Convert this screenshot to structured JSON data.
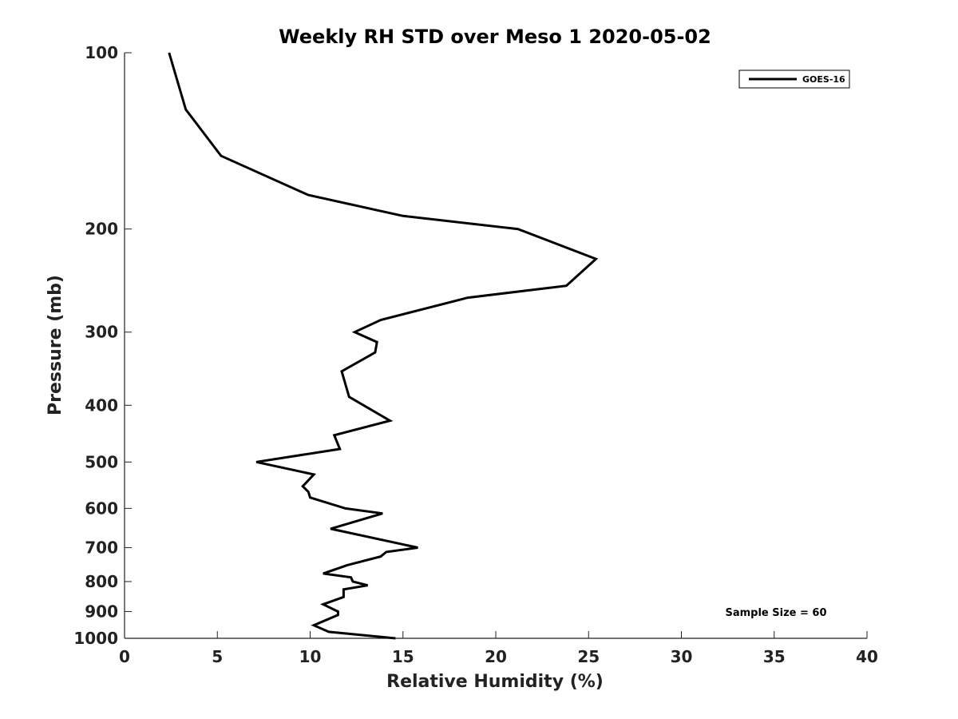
{
  "chart_data": {
    "type": "line",
    "title": "Weekly RH STD over Meso 1 2020-05-02",
    "xlabel": "Relative Humidity (%)",
    "ylabel": "Pressure (mb)",
    "xlim": [
      0,
      40
    ],
    "ylim": [
      100,
      1000
    ],
    "yscale": "log",
    "y_reversed": true,
    "x_ticks": [
      "0",
      "5",
      "10",
      "15",
      "20",
      "25",
      "30",
      "35",
      "40"
    ],
    "y_ticks": [
      "100",
      "200",
      "300",
      "400",
      "500",
      "600",
      "700",
      "800",
      "900",
      "1000"
    ],
    "grid": false,
    "legend_position": "top-right",
    "annotation": "Sample Size = 60",
    "series": [
      {
        "name": "GOES-16",
        "color": "#000000",
        "points": [
          [
            2.4,
            100
          ],
          [
            3.3,
            125
          ],
          [
            5.2,
            150
          ],
          [
            9.9,
            175
          ],
          [
            15.0,
            190
          ],
          [
            21.2,
            200
          ],
          [
            25.4,
            225
          ],
          [
            23.8,
            250
          ],
          [
            18.5,
            262
          ],
          [
            13.8,
            286
          ],
          [
            12.4,
            300
          ],
          [
            13.6,
            312
          ],
          [
            13.5,
            325
          ],
          [
            11.7,
            350
          ],
          [
            12.1,
            387
          ],
          [
            14.3,
            425
          ],
          [
            11.3,
            450
          ],
          [
            11.6,
            475
          ],
          [
            7.1,
            500
          ],
          [
            10.2,
            525
          ],
          [
            9.6,
            550
          ],
          [
            9.9,
            562
          ],
          [
            10.0,
            575
          ],
          [
            11.9,
            600
          ],
          [
            13.9,
            612
          ],
          [
            11.1,
            650
          ],
          [
            15.8,
            700
          ],
          [
            14.1,
            712
          ],
          [
            13.8,
            725
          ],
          [
            12.0,
            750
          ],
          [
            10.7,
            775
          ],
          [
            12.2,
            787
          ],
          [
            12.3,
            800
          ],
          [
            13.1,
            812
          ],
          [
            11.8,
            825
          ],
          [
            11.8,
            850
          ],
          [
            10.7,
            875
          ],
          [
            11.5,
            900
          ],
          [
            11.5,
            912
          ],
          [
            10.2,
            950
          ],
          [
            11.0,
            975
          ],
          [
            14.6,
            1000
          ]
        ]
      }
    ]
  }
}
